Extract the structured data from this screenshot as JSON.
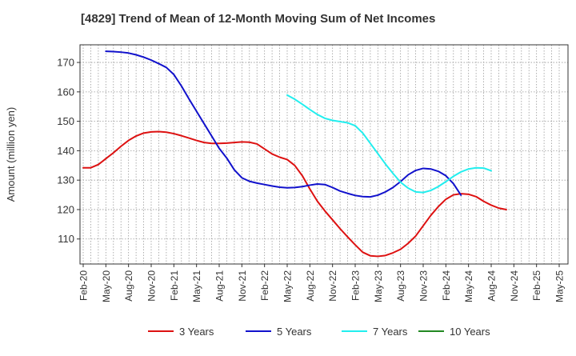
{
  "chart_data": {
    "type": "line",
    "title": "[4829]  Trend of Mean of 12-Month Moving Sum of Net Incomes",
    "xlabel": "",
    "ylabel": "Amount (million yen)",
    "ylim": [
      101.5,
      176
    ],
    "yticks": [
      110,
      120,
      130,
      140,
      150,
      160,
      170
    ],
    "x_ticks": [
      "Feb-20",
      "May-20",
      "Aug-20",
      "Nov-20",
      "Feb-21",
      "May-21",
      "Aug-21",
      "Nov-21",
      "Feb-22",
      "May-22",
      "Aug-22",
      "Nov-22",
      "Feb-23",
      "May-23",
      "Aug-23",
      "Nov-23",
      "Feb-24",
      "May-24",
      "Aug-24",
      "Nov-24",
      "Feb-25",
      "May-25"
    ],
    "grid": true,
    "legend_position": "bottom",
    "series": [
      {
        "name": "3 Years",
        "color": "#dd1111",
        "start": "Feb-20",
        "values": [
          134.2,
          134.2,
          135.3,
          137.3,
          139.3,
          141.5,
          143.5,
          145.0,
          146.0,
          146.4,
          146.5,
          146.3,
          145.8,
          145.1,
          144.3,
          143.5,
          142.8,
          142.5,
          142.5,
          142.6,
          142.8,
          143.0,
          142.9,
          142.3,
          140.6,
          138.9,
          137.8,
          137.0,
          135.0,
          131.5,
          127.0,
          122.8,
          119.5,
          116.5,
          113.5,
          110.7,
          108.0,
          105.5,
          104.3,
          104.1,
          104.4,
          105.3,
          106.5,
          108.5,
          111.0,
          114.5,
          118.0,
          121.0,
          123.5,
          125.0,
          125.4,
          125.2,
          124.4,
          122.8,
          121.5,
          120.5,
          120.0
        ]
      },
      {
        "name": "5 Years",
        "color": "#1111cc",
        "start": "May-20",
        "values": [
          173.8,
          173.7,
          173.5,
          173.2,
          172.6,
          171.8,
          170.8,
          169.6,
          168.3,
          165.9,
          162.0,
          157.6,
          153.4,
          149.2,
          145.0,
          140.8,
          137.5,
          133.5,
          130.8,
          129.6,
          129.0,
          128.5,
          128.0,
          127.6,
          127.4,
          127.5,
          127.8,
          128.3,
          128.7,
          128.5,
          127.5,
          126.3,
          125.5,
          124.8,
          124.4,
          124.3,
          124.9,
          126.0,
          127.5,
          129.5,
          131.8,
          133.3,
          134.0,
          133.8,
          133.0,
          131.5,
          128.8,
          124.9
        ]
      },
      {
        "name": "7 Years",
        "color": "#22eeee",
        "start": "May-22",
        "values": [
          158.9,
          157.5,
          155.8,
          154.0,
          152.3,
          151.0,
          150.3,
          149.9,
          149.5,
          148.5,
          146.0,
          142.5,
          139.0,
          135.5,
          132.3,
          129.3,
          127.3,
          126.0,
          125.8,
          126.5,
          127.8,
          129.5,
          131.3,
          132.8,
          133.8,
          134.2,
          134.1,
          133.2
        ]
      },
      {
        "name": "10 Years",
        "color": "#228822",
        "start": "Feb-20",
        "values": []
      }
    ]
  }
}
